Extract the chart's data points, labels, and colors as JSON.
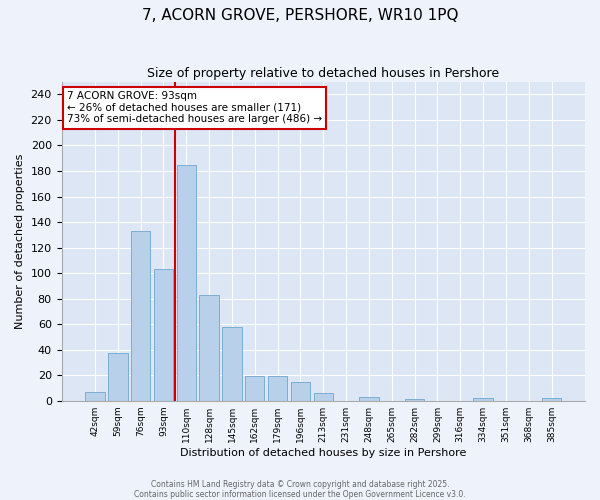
{
  "title": "7, ACORN GROVE, PERSHORE, WR10 1PQ",
  "subtitle": "Size of property relative to detached houses in Pershore",
  "xlabel": "Distribution of detached houses by size in Pershore",
  "ylabel": "Number of detached properties",
  "categories": [
    "42sqm",
    "59sqm",
    "76sqm",
    "93sqm",
    "110sqm",
    "128sqm",
    "145sqm",
    "162sqm",
    "179sqm",
    "196sqm",
    "213sqm",
    "231sqm",
    "248sqm",
    "265sqm",
    "282sqm",
    "299sqm",
    "316sqm",
    "334sqm",
    "351sqm",
    "368sqm",
    "385sqm"
  ],
  "values": [
    7,
    37,
    133,
    103,
    185,
    83,
    58,
    19,
    19,
    15,
    6,
    0,
    3,
    0,
    1,
    0,
    0,
    2,
    0,
    0,
    2
  ],
  "bar_color": "#b8d0ea",
  "bar_edge_color": "#7aaed4",
  "vline_index": 3,
  "vline_color": "#cc0000",
  "annotation_title": "7 ACORN GROVE: 93sqm",
  "annotation_line1": "← 26% of detached houses are smaller (171)",
  "annotation_line2": "73% of semi-detached houses are larger (486) →",
  "annotation_box_color": "#cc0000",
  "ylim": [
    0,
    250
  ],
  "yticks": [
    0,
    20,
    40,
    60,
    80,
    100,
    120,
    140,
    160,
    180,
    200,
    220,
    240
  ],
  "footer_line1": "Contains HM Land Registry data © Crown copyright and database right 2025.",
  "footer_line2": "Contains public sector information licensed under the Open Government Licence v3.0.",
  "bg_color": "#eef2fb",
  "plot_bg_color": "#dde6f5",
  "grid_color": "#ffffff",
  "title_fontsize": 11,
  "subtitle_fontsize": 9,
  "ylabel_fontsize": 8,
  "xlabel_fontsize": 8,
  "tick_fontsize": 8,
  "xtick_fontsize": 6.5,
  "footer_fontsize": 5.5,
  "ann_fontsize": 7.5
}
